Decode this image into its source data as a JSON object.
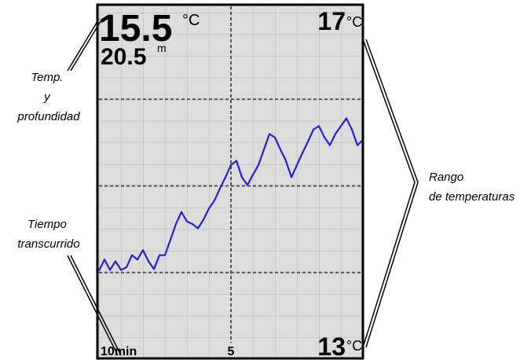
{
  "screen": {
    "temperature": "15.5",
    "temperature_unit": "°C",
    "depth": "20.5",
    "depth_unit": "m",
    "range_unit": "°C"
  },
  "callouts": {
    "temp_depth": [
      "Temp.",
      "y",
      "profundidad"
    ],
    "elapsed": [
      "Tiempo",
      "transcurrido"
    ],
    "range": [
      "Rango",
      "de temperaturas"
    ]
  },
  "chart_data": {
    "type": "line",
    "color": "#2424c8",
    "ylim": [
      13,
      17
    ],
    "yticks": [
      14,
      15,
      16
    ],
    "xlim": [
      10,
      0
    ],
    "xticks": [
      {
        "value": 10,
        "label": "10min"
      },
      {
        "value": 5,
        "label": "5"
      }
    ],
    "values": [
      14.02,
      14.15,
      14.03,
      14.13,
      14.03,
      14.06,
      14.2,
      14.15,
      14.26,
      14.13,
      14.04,
      14.2,
      14.2,
      14.38,
      14.56,
      14.7,
      14.59,
      14.56,
      14.51,
      14.61,
      14.74,
      14.83,
      14.97,
      15.1,
      15.24,
      15.29,
      15.1,
      15.01,
      15.13,
      15.24,
      15.42,
      15.6,
      15.56,
      15.42,
      15.29,
      15.1,
      15.24,
      15.38,
      15.51,
      15.65,
      15.69,
      15.56,
      15.47,
      15.6,
      15.69,
      15.78,
      15.65,
      15.47,
      15.53
    ]
  }
}
